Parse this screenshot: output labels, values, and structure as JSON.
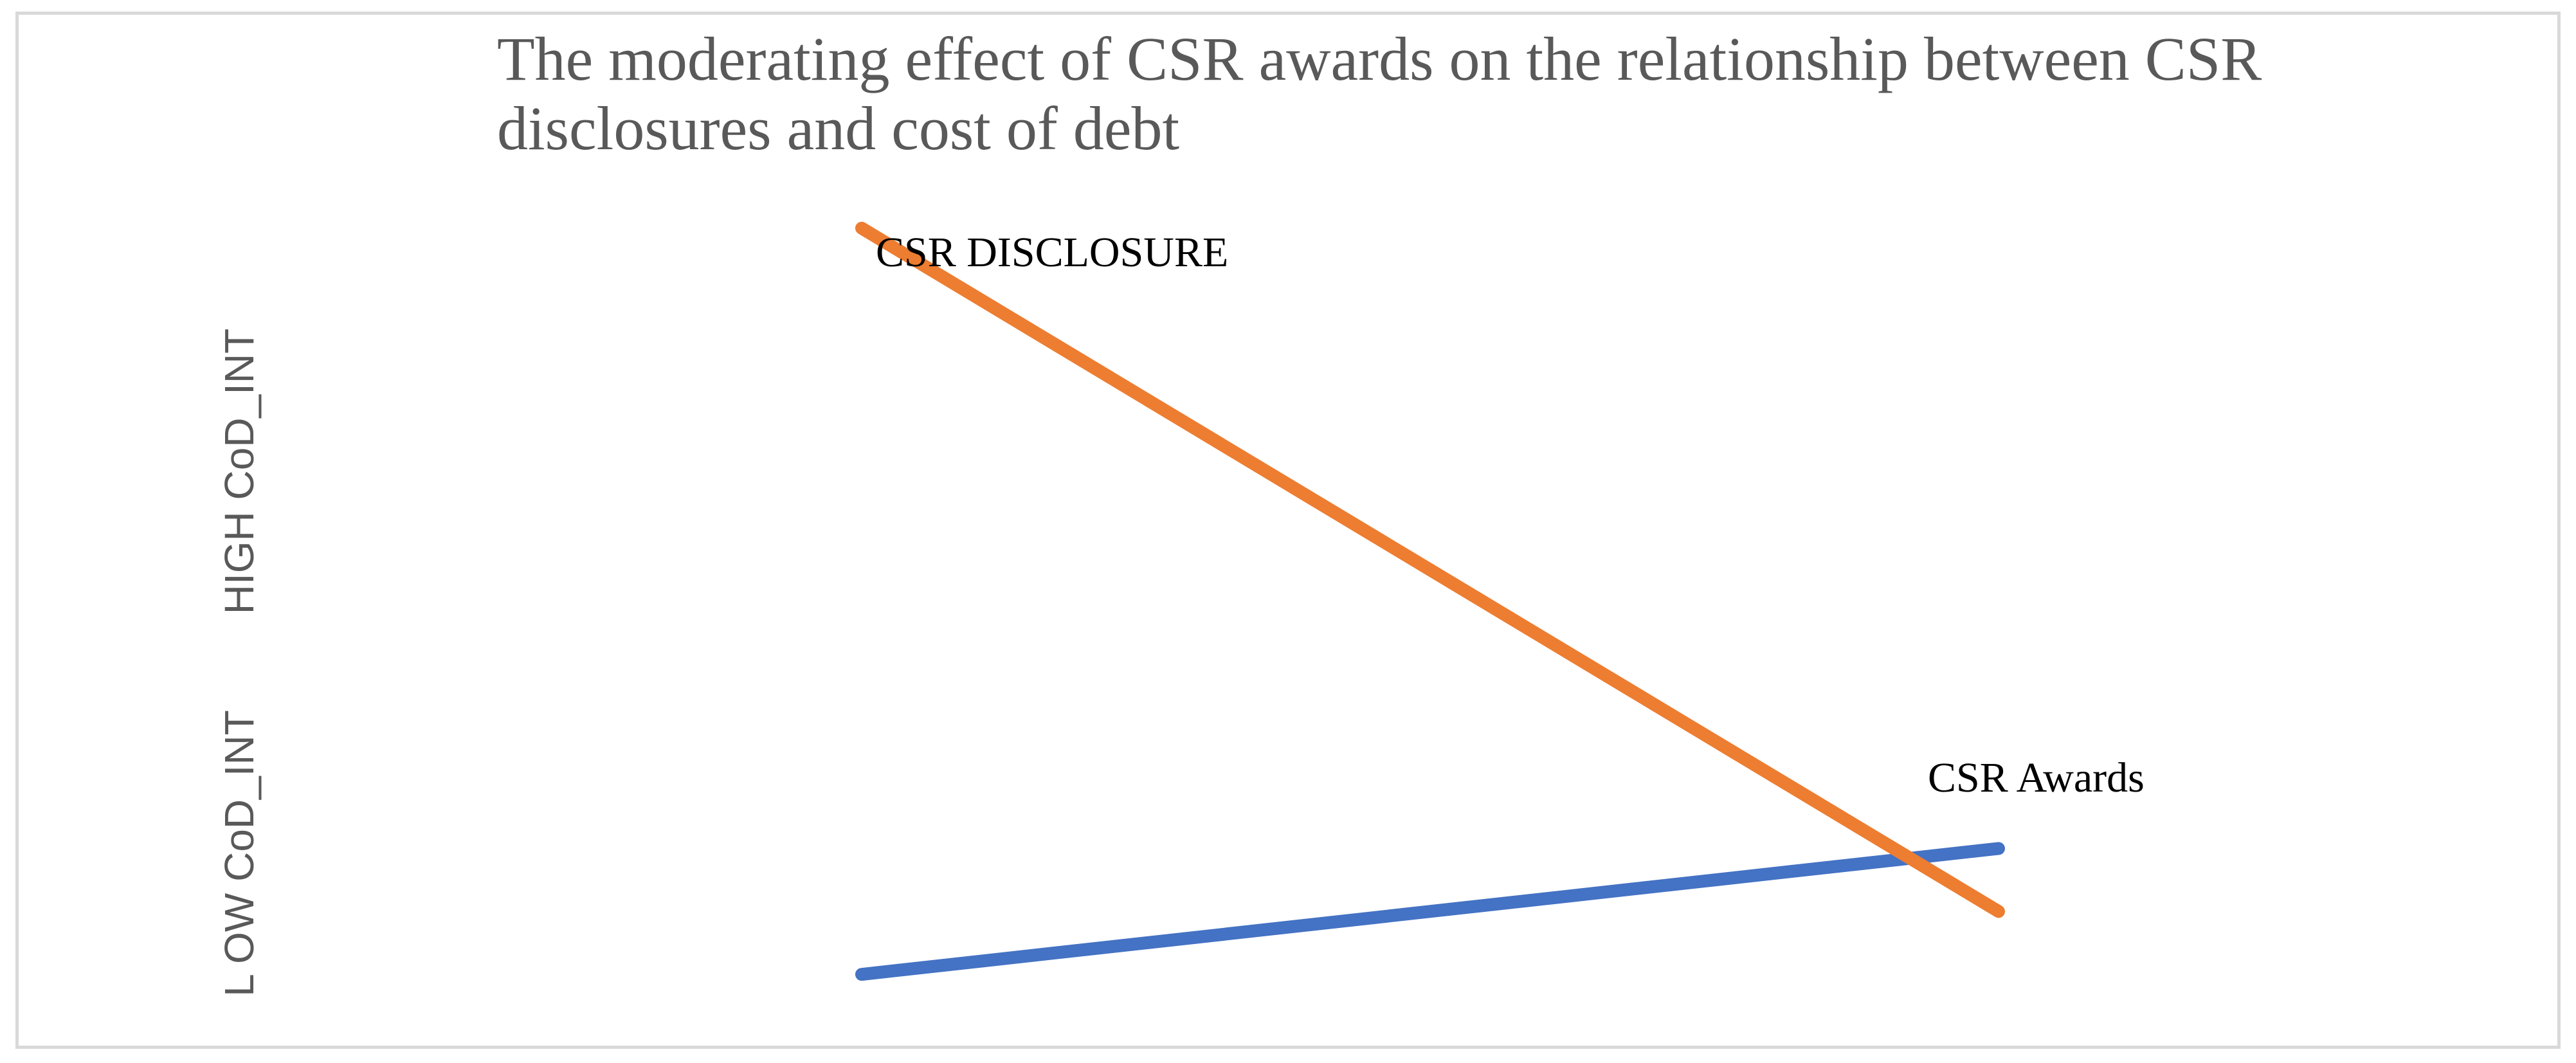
{
  "chart_data": {
    "type": "line",
    "title": "The moderating effect of CSR awards on the relationship between CSR disclosures and cost of debt",
    "categories": [
      "",
      ""
    ],
    "y_axis_labels": {
      "high": "HIGH CoD_INT",
      "low": "L OW CoD_INT"
    },
    "series": [
      {
        "name": "CSR DISCLOSURE",
        "color": "#ed7d31",
        "values": [
          0.91,
          0.15
        ]
      },
      {
        "name": "CSR Awards",
        "color": "#4472c4",
        "values": [
          0.08,
          0.22
        ]
      }
    ],
    "ylim": [
      0,
      1
    ],
    "grid": false,
    "legend": "none"
  }
}
